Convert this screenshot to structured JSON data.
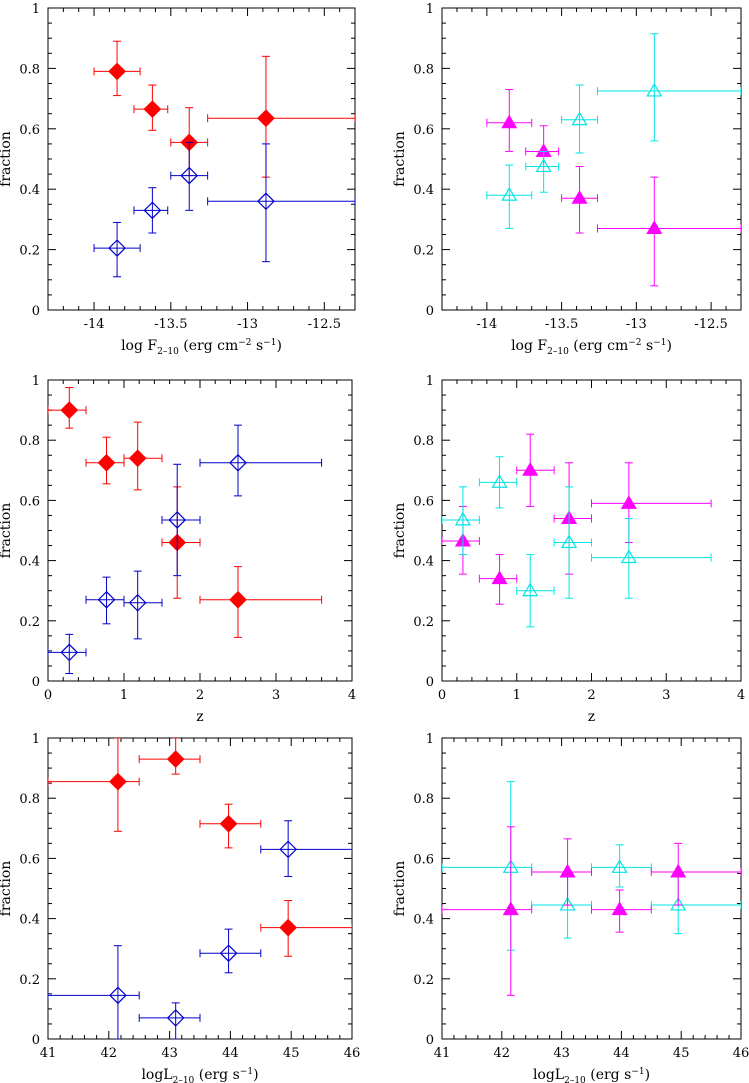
{
  "colors": {
    "red": "#ff0000",
    "blue": "#0000cc",
    "magenta": "#ff00ff",
    "cyan": "#00e5e5",
    "axes": "#000000"
  },
  "labels": {
    "flux_xlabel": {
      "main": "log F",
      "sub": "2–10",
      "rest": " (erg cm",
      "sup1": "−2",
      "mid": " s",
      "sup2": "−1",
      "close": ")"
    },
    "z_xlabel": {
      "main": "z"
    },
    "lum_xlabel": {
      "main": "logL",
      "sub": "2–10",
      "rest": " (erg s",
      "sup1": "−1",
      "close": ")"
    }
  },
  "chart_data": [
    {
      "type": "scatter",
      "ylabel": "fraction",
      "xlim": [
        -14.3,
        -12.3
      ],
      "ylim": [
        0,
        1
      ],
      "xticks": [
        "-14",
        "-13.5",
        "-13",
        "-12.5"
      ],
      "xtick_values": [
        -14,
        -13.5,
        -13,
        -12.5
      ],
      "yticks": [
        "0",
        "0.2",
        "0.4",
        "0.6",
        "0.8",
        "1"
      ],
      "ytick_values": [
        0,
        0.2,
        0.4,
        0.6,
        0.8,
        1
      ],
      "xlabel_key": "flux_xlabel",
      "series": [
        {
          "color": "red",
          "marker": "diamond-filled",
          "points": [
            {
              "x": -13.85,
              "xerr": [
                0.15,
                0.15
              ],
              "y": 0.79,
              "yerr": [
                0.08,
                0.1
              ]
            },
            {
              "x": -13.62,
              "xerr": [
                0.12,
                0.1
              ],
              "y": 0.665,
              "yerr": [
                0.07,
                0.08
              ]
            },
            {
              "x": -13.38,
              "xerr": [
                0.12,
                0.12
              ],
              "y": 0.555,
              "yerr": [
                0.11,
                0.115
              ]
            },
            {
              "x": -12.88,
              "xerr": [
                0.38,
                0.58
              ],
              "y": 0.635,
              "yerr": [
                0.195,
                0.205
              ]
            }
          ]
        },
        {
          "color": "blue",
          "marker": "diamond-open",
          "points": [
            {
              "x": -13.85,
              "xerr": [
                0.15,
                0.15
              ],
              "y": 0.205,
              "yerr": [
                0.095,
                0.085
              ]
            },
            {
              "x": -13.62,
              "xerr": [
                0.12,
                0.1
              ],
              "y": 0.33,
              "yerr": [
                0.075,
                0.075
              ]
            },
            {
              "x": -13.38,
              "xerr": [
                0.12,
                0.12
              ],
              "y": 0.445,
              "yerr": [
                0.115,
                0.11
              ]
            },
            {
              "x": -12.88,
              "xerr": [
                0.38,
                0.58
              ],
              "y": 0.36,
              "yerr": [
                0.2,
                0.19
              ]
            }
          ]
        }
      ]
    },
    {
      "type": "scatter",
      "ylabel": "fraction",
      "xlim": [
        -14.3,
        -12.3
      ],
      "ylim": [
        0,
        1
      ],
      "xticks": [
        "-14",
        "-13.5",
        "-13",
        "-12.5"
      ],
      "xtick_values": [
        -14,
        -13.5,
        -13,
        -12.5
      ],
      "yticks": [
        "0",
        "0.2",
        "0.4",
        "0.6",
        "0.8",
        "1"
      ],
      "ytick_values": [
        0,
        0.2,
        0.4,
        0.6,
        0.8,
        1
      ],
      "xlabel_key": "flux_xlabel",
      "series": [
        {
          "color": "magenta",
          "marker": "triangle-filled",
          "points": [
            {
              "x": -13.85,
              "xerr": [
                0.15,
                0.15
              ],
              "y": 0.62,
              "yerr": [
                0.095,
                0.11
              ]
            },
            {
              "x": -13.62,
              "xerr": [
                0.12,
                0.1
              ],
              "y": 0.525,
              "yerr": [
                0.05,
                0.085
              ]
            },
            {
              "x": -13.38,
              "xerr": [
                0.12,
                0.12
              ],
              "y": 0.37,
              "yerr": [
                0.115,
                0.105
              ]
            },
            {
              "x": -12.88,
              "xerr": [
                0.38,
                0.58
              ],
              "y": 0.27,
              "yerr": [
                0.19,
                0.17
              ]
            }
          ]
        },
        {
          "color": "cyan",
          "marker": "triangle-open",
          "points": [
            {
              "x": -13.85,
              "xerr": [
                0.15,
                0.15
              ],
              "y": 0.38,
              "yerr": [
                0.11,
                0.1
              ]
            },
            {
              "x": -13.62,
              "xerr": [
                0.12,
                0.1
              ],
              "y": 0.475,
              "yerr": [
                0.085,
                0.05
              ]
            },
            {
              "x": -13.38,
              "xerr": [
                0.12,
                0.12
              ],
              "y": 0.63,
              "yerr": [
                0.11,
                0.115
              ]
            },
            {
              "x": -12.88,
              "xerr": [
                0.38,
                0.58
              ],
              "y": 0.725,
              "yerr": [
                0.165,
                0.19
              ]
            }
          ]
        }
      ]
    },
    {
      "type": "scatter",
      "ylabel": "fraction",
      "xlim": [
        0,
        4
      ],
      "ylim": [
        0,
        1
      ],
      "xticks": [
        "0",
        "1",
        "2",
        "3",
        "4"
      ],
      "xtick_values": [
        0,
        1,
        2,
        3,
        4
      ],
      "yticks": [
        "0",
        "0.2",
        "0.4",
        "0.6",
        "0.8",
        "1"
      ],
      "ytick_values": [
        0,
        0.2,
        0.4,
        0.6,
        0.8,
        1
      ],
      "xlabel_key": "z_xlabel",
      "series": [
        {
          "color": "red",
          "marker": "diamond-filled",
          "points": [
            {
              "x": 0.28,
              "xerr": [
                0.28,
                0.22
              ],
              "y": 0.9,
              "yerr": [
                0.06,
                0.075
              ]
            },
            {
              "x": 0.77,
              "xerr": [
                0.27,
                0.23
              ],
              "y": 0.725,
              "yerr": [
                0.07,
                0.085
              ]
            },
            {
              "x": 1.18,
              "xerr": [
                0.18,
                0.32
              ],
              "y": 0.74,
              "yerr": [
                0.105,
                0.12
              ]
            },
            {
              "x": 1.7,
              "xerr": [
                0.2,
                0.3
              ],
              "y": 0.46,
              "yerr": [
                0.185,
                0.185
              ]
            },
            {
              "x": 2.5,
              "xerr": [
                0.5,
                1.1
              ],
              "y": 0.27,
              "yerr": [
                0.125,
                0.11
              ]
            }
          ]
        },
        {
          "color": "blue",
          "marker": "diamond-open",
          "points": [
            {
              "x": 0.28,
              "xerr": [
                0.28,
                0.22
              ],
              "y": 0.095,
              "yerr": [
                0.07,
                0.06
              ]
            },
            {
              "x": 0.77,
              "xerr": [
                0.27,
                0.23
              ],
              "y": 0.27,
              "yerr": [
                0.08,
                0.075
              ]
            },
            {
              "x": 1.18,
              "xerr": [
                0.18,
                0.32
              ],
              "y": 0.26,
              "yerr": [
                0.12,
                0.105
              ]
            },
            {
              "x": 1.7,
              "xerr": [
                0.2,
                0.3
              ],
              "y": 0.535,
              "yerr": [
                0.185,
                0.185
              ]
            },
            {
              "x": 2.5,
              "xerr": [
                0.5,
                1.1
              ],
              "y": 0.725,
              "yerr": [
                0.11,
                0.125
              ]
            }
          ]
        }
      ]
    },
    {
      "type": "scatter",
      "ylabel": "fraction",
      "xlim": [
        0,
        4
      ],
      "ylim": [
        0,
        1
      ],
      "xticks": [
        "0",
        "1",
        "2",
        "3",
        "4"
      ],
      "xtick_values": [
        0,
        1,
        2,
        3,
        4
      ],
      "yticks": [
        "0",
        "0.2",
        "0.4",
        "0.6",
        "0.8",
        "1"
      ],
      "ytick_values": [
        0,
        0.2,
        0.4,
        0.6,
        0.8,
        1
      ],
      "xlabel_key": "z_xlabel",
      "series": [
        {
          "color": "magenta",
          "marker": "triangle-filled",
          "points": [
            {
              "x": 0.28,
              "xerr": [
                0.28,
                0.22
              ],
              "y": 0.465,
              "yerr": [
                0.11,
                0.115
              ]
            },
            {
              "x": 0.77,
              "xerr": [
                0.27,
                0.23
              ],
              "y": 0.34,
              "yerr": [
                0.085,
                0.08
              ]
            },
            {
              "x": 1.18,
              "xerr": [
                0.18,
                0.32
              ],
              "y": 0.7,
              "yerr": [
                0.12,
                0.12
              ]
            },
            {
              "x": 1.7,
              "xerr": [
                0.2,
                0.3
              ],
              "y": 0.54,
              "yerr": [
                0.185,
                0.185
              ]
            },
            {
              "x": 2.5,
              "xerr": [
                0.5,
                1.1
              ],
              "y": 0.59,
              "yerr": [
                0.13,
                0.135
              ]
            }
          ]
        },
        {
          "color": "cyan",
          "marker": "triangle-open",
          "points": [
            {
              "x": 0.28,
              "xerr": [
                0.28,
                0.22
              ],
              "y": 0.535,
              "yerr": [
                0.115,
                0.11
              ]
            },
            {
              "x": 0.77,
              "xerr": [
                0.27,
                0.23
              ],
              "y": 0.66,
              "yerr": [
                0.085,
                0.085
              ]
            },
            {
              "x": 1.18,
              "xerr": [
                0.18,
                0.32
              ],
              "y": 0.3,
              "yerr": [
                0.12,
                0.12
              ]
            },
            {
              "x": 1.7,
              "xerr": [
                0.2,
                0.3
              ],
              "y": 0.46,
              "yerr": [
                0.185,
                0.185
              ]
            },
            {
              "x": 2.5,
              "xerr": [
                0.5,
                1.1
              ],
              "y": 0.41,
              "yerr": [
                0.135,
                0.13
              ]
            }
          ]
        }
      ]
    },
    {
      "type": "scatter",
      "ylabel": "fraction",
      "xlim": [
        41,
        46
      ],
      "ylim": [
        0,
        1
      ],
      "xticks": [
        "41",
        "42",
        "43",
        "44",
        "45",
        "46"
      ],
      "xtick_values": [
        41,
        42,
        43,
        44,
        45,
        46
      ],
      "yticks": [
        "0",
        "0.2",
        "0.4",
        "0.6",
        "0.8",
        "1"
      ],
      "ytick_values": [
        0,
        0.2,
        0.4,
        0.6,
        0.8,
        1
      ],
      "xlabel_key": "lum_xlabel",
      "series": [
        {
          "color": "red",
          "marker": "diamond-filled",
          "points": [
            {
              "x": 42.15,
              "xerr": [
                1.15,
                0.35
              ],
              "y": 0.855,
              "yerr": [
                0.165,
                0.145
              ]
            },
            {
              "x": 43.1,
              "xerr": [
                0.6,
                0.4
              ],
              "y": 0.93,
              "yerr": [
                0.05,
                0.07
              ]
            },
            {
              "x": 43.97,
              "xerr": [
                0.47,
                0.53
              ],
              "y": 0.715,
              "yerr": [
                0.08,
                0.065
              ]
            },
            {
              "x": 44.95,
              "xerr": [
                0.45,
                1.05
              ],
              "y": 0.37,
              "yerr": [
                0.095,
                0.09
              ]
            }
          ]
        },
        {
          "color": "blue",
          "marker": "diamond-open",
          "points": [
            {
              "x": 42.15,
              "xerr": [
                1.15,
                0.35
              ],
              "y": 0.145,
              "yerr": [
                0.145,
                0.165
              ]
            },
            {
              "x": 43.1,
              "xerr": [
                0.6,
                0.4
              ],
              "y": 0.07,
              "yerr": [
                0.07,
                0.05
              ]
            },
            {
              "x": 43.97,
              "xerr": [
                0.47,
                0.53
              ],
              "y": 0.285,
              "yerr": [
                0.065,
                0.08
              ]
            },
            {
              "x": 44.95,
              "xerr": [
                0.45,
                1.05
              ],
              "y": 0.63,
              "yerr": [
                0.09,
                0.095
              ]
            }
          ]
        }
      ]
    },
    {
      "type": "scatter",
      "ylabel": "fraction",
      "xlim": [
        41,
        46
      ],
      "ylim": [
        0,
        1
      ],
      "xticks": [
        "41",
        "42",
        "43",
        "44",
        "45",
        "46"
      ],
      "xtick_values": [
        41,
        42,
        43,
        44,
        45,
        46
      ],
      "yticks": [
        "0",
        "0.2",
        "0.4",
        "0.6",
        "0.8",
        "1"
      ],
      "ytick_values": [
        0,
        0.2,
        0.4,
        0.6,
        0.8,
        1
      ],
      "xlabel_key": "lum_xlabel",
      "series": [
        {
          "color": "cyan",
          "marker": "triangle-open",
          "points": [
            {
              "x": 42.15,
              "xerr": [
                1.15,
                0.35
              ],
              "y": 0.57,
              "yerr": [
                0.275,
                0.285
              ]
            },
            {
              "x": 43.1,
              "xerr": [
                0.6,
                0.4
              ],
              "y": 0.445,
              "yerr": [
                0.11,
                0.11
              ]
            },
            {
              "x": 43.97,
              "xerr": [
                0.47,
                0.53
              ],
              "y": 0.57,
              "yerr": [
                0.065,
                0.075
              ]
            },
            {
              "x": 44.95,
              "xerr": [
                0.45,
                1.05
              ],
              "y": 0.445,
              "yerr": [
                0.095,
                0.11
              ]
            }
          ]
        },
        {
          "color": "magenta",
          "marker": "triangle-filled",
          "points": [
            {
              "x": 42.15,
              "xerr": [
                1.15,
                0.35
              ],
              "y": 0.43,
              "yerr": [
                0.285,
                0.275
              ]
            },
            {
              "x": 43.1,
              "xerr": [
                0.6,
                0.4
              ],
              "y": 0.555,
              "yerr": [
                0.11,
                0.11
              ]
            },
            {
              "x": 43.97,
              "xerr": [
                0.47,
                0.53
              ],
              "y": 0.43,
              "yerr": [
                0.075,
                0.065
              ]
            },
            {
              "x": 44.95,
              "xerr": [
                0.45,
                1.05
              ],
              "y": 0.555,
              "yerr": [
                0.11,
                0.095
              ]
            }
          ]
        }
      ]
    }
  ]
}
